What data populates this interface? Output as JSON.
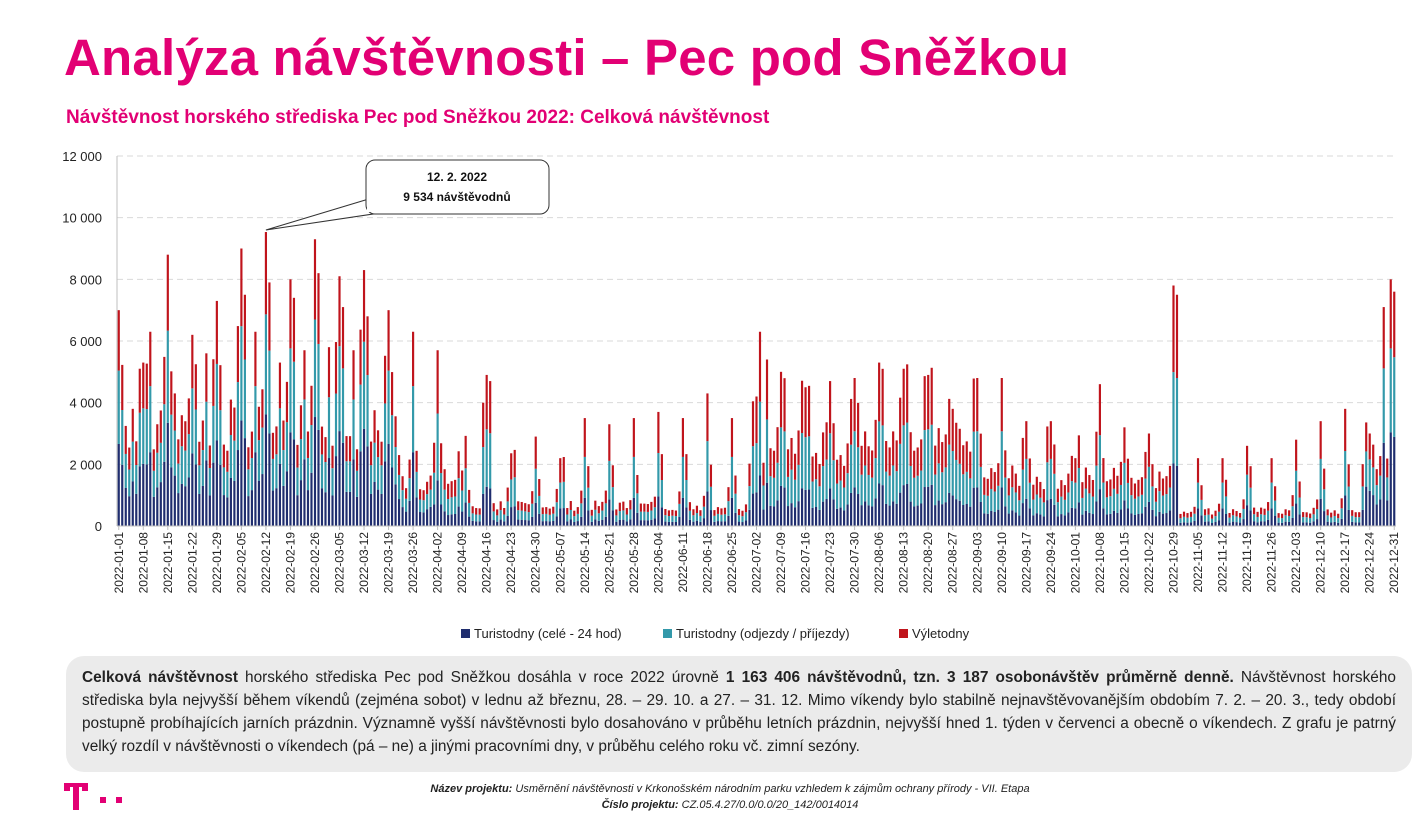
{
  "page": {
    "title": "Analýza návštěvnosti – Pec pod Sněžkou"
  },
  "chart_data": {
    "type": "bar",
    "stacked": true,
    "title": "Návštěvnost horského střediska Pec pod Sněžkou 2022: Celková návštěvnost",
    "xlabel": "",
    "ylabel": "",
    "ylim": [
      0,
      12000
    ],
    "yticks": [
      "0",
      "2 000",
      "4 000",
      "6 000",
      "8 000",
      "10 000",
      "12 000"
    ],
    "xticks": [
      "2022-01-01",
      "2022-01-08",
      "2022-01-15",
      "2022-01-22",
      "2022-01-29",
      "2022-02-05",
      "2022-02-12",
      "2022-02-19",
      "2022-02-26",
      "2022-03-05",
      "2022-03-12",
      "2022-03-19",
      "2022-03-26",
      "2022-04-02",
      "2022-04-09",
      "2022-04-16",
      "2022-04-23",
      "2022-04-30",
      "2022-05-07",
      "2022-05-14",
      "2022-05-21",
      "2022-05-28",
      "2022-06-04",
      "2022-06-11",
      "2022-06-18",
      "2022-06-25",
      "2022-07-02",
      "2022-07-09",
      "2022-07-16",
      "2022-07-23",
      "2022-07-30",
      "2022-08-06",
      "2022-08-13",
      "2022-08-20",
      "2022-08-27",
      "2022-09-03",
      "2022-09-10",
      "2022-09-17",
      "2022-09-24",
      "2022-10-01",
      "2022-10-08",
      "2022-10-15",
      "2022-10-22",
      "2022-10-29",
      "2022-11-05",
      "2022-11-12",
      "2022-11-19",
      "2022-11-26",
      "2022-12-03",
      "2022-12-10",
      "2022-12-17",
      "2022-12-24",
      "2022-12-31"
    ],
    "x_start": "2022-01-01",
    "x_end": "2022-12-31",
    "grid": true,
    "legend_position": "bottom",
    "series": [
      {
        "name": "Turistodny (celé - 24 hod)",
        "color": "#1f2d6e"
      },
      {
        "name": "Turistodny (odjezdy / příjezdy)",
        "color": "#3399aa"
      },
      {
        "name": "Výletodny",
        "color": "#c0141c"
      }
    ],
    "daily_totals": [
      {
        "x": "2022-01-01",
        "total": 7000
      },
      {
        "x": "2022-01-05",
        "total": 3800
      },
      {
        "x": "2022-01-08",
        "total": 5300
      },
      {
        "x": "2022-01-10",
        "total": 6300
      },
      {
        "x": "2022-01-12",
        "total": 3300
      },
      {
        "x": "2022-01-15",
        "total": 8800
      },
      {
        "x": "2022-01-17",
        "total": 4300
      },
      {
        "x": "2022-01-22",
        "total": 6200
      },
      {
        "x": "2022-01-26",
        "total": 5600
      },
      {
        "x": "2022-01-29",
        "total": 7300
      },
      {
        "x": "2022-02-02",
        "total": 4100
      },
      {
        "x": "2022-02-05",
        "total": 9000
      },
      {
        "x": "2022-02-06",
        "total": 7500
      },
      {
        "x": "2022-02-09",
        "total": 6300
      },
      {
        "x": "2022-02-12",
        "total": 9534
      },
      {
        "x": "2022-02-13",
        "total": 7900
      },
      {
        "x": "2022-02-16",
        "total": 5300
      },
      {
        "x": "2022-02-19",
        "total": 8000
      },
      {
        "x": "2022-02-20",
        "total": 7400
      },
      {
        "x": "2022-02-23",
        "total": 5700
      },
      {
        "x": "2022-02-26",
        "total": 9300
      },
      {
        "x": "2022-02-27",
        "total": 8200
      },
      {
        "x": "2022-03-02",
        "total": 5800
      },
      {
        "x": "2022-03-05",
        "total": 8100
      },
      {
        "x": "2022-03-06",
        "total": 7100
      },
      {
        "x": "2022-03-09",
        "total": 5700
      },
      {
        "x": "2022-03-12",
        "total": 8300
      },
      {
        "x": "2022-03-13",
        "total": 6800
      },
      {
        "x": "2022-03-19",
        "total": 7000
      },
      {
        "x": "2022-03-22",
        "total": 2300
      },
      {
        "x": "2022-03-26",
        "total": 6300
      },
      {
        "x": "2022-04-01",
        "total": 2700
      },
      {
        "x": "2022-04-02",
        "total": 5700
      },
      {
        "x": "2022-04-09",
        "total": 1800
      },
      {
        "x": "2022-04-15",
        "total": 4000
      },
      {
        "x": "2022-04-16",
        "total": 4900
      },
      {
        "x": "2022-04-17",
        "total": 4700
      },
      {
        "x": "2022-04-20",
        "total": 800
      },
      {
        "x": "2022-04-30",
        "total": 2900
      },
      {
        "x": "2022-05-07",
        "total": 2200
      },
      {
        "x": "2022-05-14",
        "total": 3500
      },
      {
        "x": "2022-05-21",
        "total": 3300
      },
      {
        "x": "2022-05-28",
        "total": 3500
      },
      {
        "x": "2022-06-04",
        "total": 3700
      },
      {
        "x": "2022-06-11",
        "total": 3500
      },
      {
        "x": "2022-06-18",
        "total": 4300
      },
      {
        "x": "2022-06-25",
        "total": 3500
      },
      {
        "x": "2022-07-02",
        "total": 4200
      },
      {
        "x": "2022-07-03",
        "total": 6300
      },
      {
        "x": "2022-07-05",
        "total": 5400
      },
      {
        "x": "2022-07-09",
        "total": 5000
      },
      {
        "x": "2022-07-16",
        "total": 4500
      },
      {
        "x": "2022-07-23",
        "total": 4700
      },
      {
        "x": "2022-07-30",
        "total": 4800
      },
      {
        "x": "2022-08-06",
        "total": 5300
      },
      {
        "x": "2022-08-13",
        "total": 5100
      },
      {
        "x": "2022-08-20",
        "total": 4900
      },
      {
        "x": "2022-08-27",
        "total": 3800
      },
      {
        "x": "2022-09-03",
        "total": 4800
      },
      {
        "x": "2022-09-10",
        "total": 4800
      },
      {
        "x": "2022-09-17",
        "total": 3400
      },
      {
        "x": "2022-09-24",
        "total": 3400
      },
      {
        "x": "2022-10-01",
        "total": 2200
      },
      {
        "x": "2022-10-08",
        "total": 4600
      },
      {
        "x": "2022-10-15",
        "total": 3200
      },
      {
        "x": "2022-10-22",
        "total": 3000
      },
      {
        "x": "2022-10-29",
        "total": 7800
      },
      {
        "x": "2022-10-30",
        "total": 7500
      },
      {
        "x": "2022-11-05",
        "total": 2200
      },
      {
        "x": "2022-11-12",
        "total": 2200
      },
      {
        "x": "2022-11-19",
        "total": 2600
      },
      {
        "x": "2022-11-26",
        "total": 2200
      },
      {
        "x": "2022-12-03",
        "total": 2800
      },
      {
        "x": "2022-12-10",
        "total": 3400
      },
      {
        "x": "2022-12-17",
        "total": 3800
      },
      {
        "x": "2022-12-24",
        "total": 3000
      },
      {
        "x": "2022-12-28",
        "total": 7100
      },
      {
        "x": "2022-12-30",
        "total": 8000
      },
      {
        "x": "2022-12-31",
        "total": 7600
      }
    ],
    "annotations": [
      {
        "x": "2022-02-12",
        "y": 9534,
        "date_label": "12. 2. 2022",
        "value_label": "9 534 návštěvodnů"
      }
    ]
  },
  "summary": {
    "p1_bold": "Celková návštěvnost",
    "p2": " horského střediska Pec pod Sněžkou dosáhla v roce 2022 úrovně ",
    "p3_bold": "1 163 406 návštěvodnů, tzn. 3 187 osobonávštěv průměrně denně.",
    "p4": " Návštěvnost horského střediska byla nejvyšší během víkendů (zejména sobot) v lednu až březnu, 28. – 29. 10. a 27. – 31. 12. Mimo víkendy bylo stabilně nejnavštěvovanějším obdobím 7. 2. – 20. 3., tedy období postupně probíhajících jarních prázdnin. Významně vyšší návštěvnosti bylo dosahováno v průběhu letních prázdnin, nejvyšší hned 1. týden v červenci a obecně o víkendech. Z grafu je patrný velký rozdíl v návštěvnosti o víkendech (pá – ne) a jinými pracovními dny, v průběhu celého roku vč. zimní sezóny."
  },
  "footer": {
    "project_label": "Název projektu:",
    "project_value": " Usměrnění návštěvnosti v Krkonošském národním parku vzhledem k zájmům ochrany přírody - VII. Etapa",
    "number_label": "Číslo projektu:",
    "number_value": " CZ.05.4.27/0.0/0.0/20_142/0014014"
  },
  "brand": {
    "logo_text": "T",
    "color": "#e20074"
  }
}
